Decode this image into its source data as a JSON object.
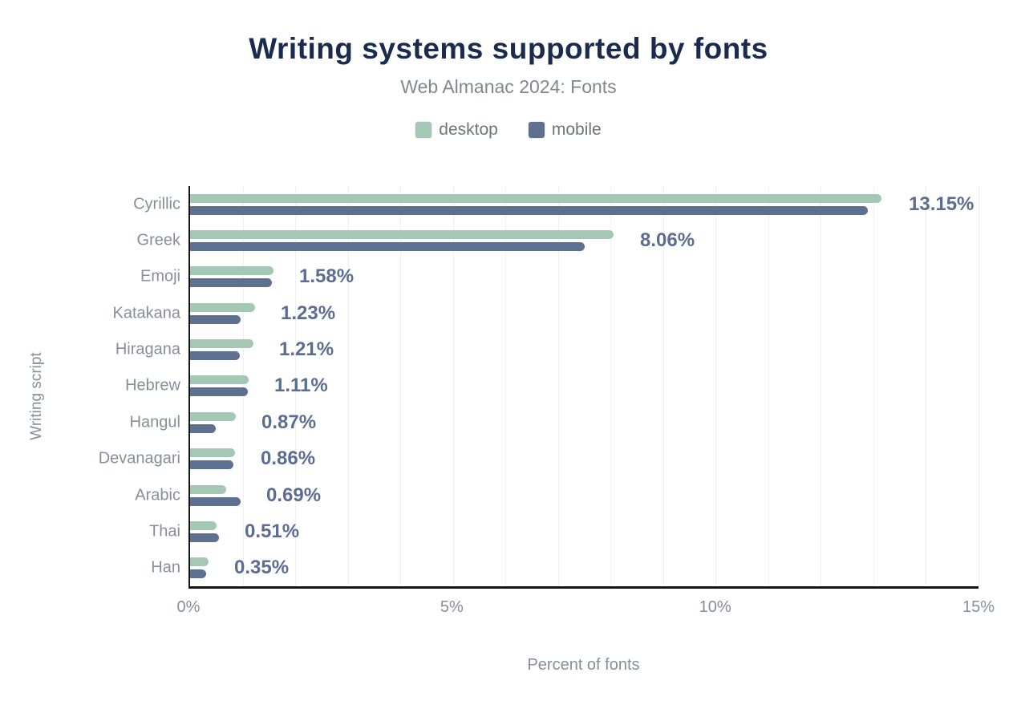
{
  "chart_data": {
    "type": "bar",
    "orientation": "horizontal",
    "title": "Writing systems supported by fonts",
    "subtitle": "Web Almanac 2024: Fonts",
    "xlabel": "Percent of fonts",
    "ylabel": "Writing script",
    "xlim": [
      0,
      15
    ],
    "grid": true,
    "grid_interval": 1,
    "x_ticks": [
      {
        "value": 0,
        "label": "0%"
      },
      {
        "value": 5,
        "label": "5%"
      },
      {
        "value": 10,
        "label": "10%"
      },
      {
        "value": 15,
        "label": "15%"
      }
    ],
    "categories": [
      "Cyrillic",
      "Greek",
      "Emoji",
      "Katakana",
      "Hiragana",
      "Hebrew",
      "Hangul",
      "Devanagari",
      "Arabic",
      "Thai",
      "Han"
    ],
    "series": [
      {
        "name": "desktop",
        "color": "#a5c8b5",
        "values": [
          13.15,
          8.06,
          1.58,
          1.23,
          1.21,
          1.11,
          0.87,
          0.86,
          0.69,
          0.51,
          0.35
        ]
      },
      {
        "name": "mobile",
        "color": "#5d7090",
        "values": [
          12.9,
          7.5,
          1.56,
          0.96,
          0.95,
          1.1,
          0.49,
          0.82,
          0.96,
          0.55,
          0.31
        ]
      }
    ],
    "value_labels": [
      "13.15%",
      "8.06%",
      "1.58%",
      "1.23%",
      "1.21%",
      "1.11%",
      "0.87%",
      "0.86%",
      "0.69%",
      "0.51%",
      "0.35%"
    ],
    "legend_position": "top",
    "legend": [
      {
        "label": "desktop",
        "color": "#a5c8b5"
      },
      {
        "label": "mobile",
        "color": "#5d7090"
      }
    ]
  },
  "colors": {
    "background": "#ffffff",
    "title": "#1a2b4e",
    "subtitle": "#82868f",
    "axis_text": "#878e99",
    "value_label": "#5b6d92",
    "axis_line": "#141414",
    "gridline": "#eff1ef"
  }
}
